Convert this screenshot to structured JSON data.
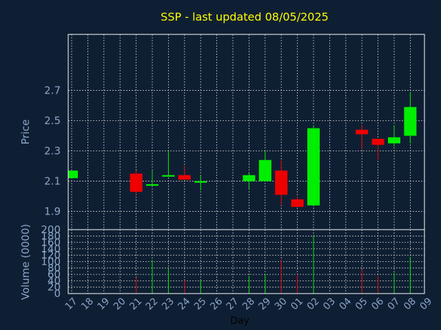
{
  "colors": {
    "background": "#0f1f33",
    "frame": "#ffffff",
    "grid": "#c8c8c8",
    "title": "#ffff00",
    "axis_text": "#8aa5c8",
    "up": "#00ee00",
    "down": "#ee0000"
  },
  "chart_data": {
    "type": "candlestick",
    "title": "SSP - last updated 08/05/2025",
    "xlabel": "Day",
    "ylabel_price": "Price",
    "ylabel_volume": "Volume (0000)",
    "x_ticks": [
      "17",
      "18",
      "19",
      "20",
      "21",
      "22",
      "23",
      "24",
      "25",
      "26",
      "27",
      "28",
      "29",
      "30",
      "01",
      "02",
      "03",
      "04",
      "05",
      "06",
      "07",
      "08",
      "09"
    ],
    "price_ticks": [
      "1.9",
      "2.1",
      "2.3",
      "2.5",
      "2.7"
    ],
    "price_ylim": [
      1.78,
      3.07
    ],
    "volume_ticks": [
      "0",
      "20",
      "40",
      "60",
      "80",
      "100",
      "120",
      "140",
      "160",
      "180",
      "200"
    ],
    "volume_ylim": [
      0,
      200
    ],
    "grid": true,
    "candles": [
      {
        "day": "17",
        "open": 2.12,
        "close": 2.17,
        "high": 2.17,
        "low": 2.12,
        "volume": 0
      },
      {
        "day": "21",
        "open": 2.15,
        "close": 2.03,
        "high": 2.17,
        "low": 2.01,
        "volume": 50
      },
      {
        "day": "22",
        "open": 2.07,
        "close": 2.08,
        "high": 2.17,
        "low": 2.07,
        "volume": 105
      },
      {
        "day": "23",
        "open": 2.13,
        "close": 2.14,
        "high": 2.3,
        "low": 2.13,
        "volume": 78
      },
      {
        "day": "24",
        "open": 2.14,
        "close": 2.11,
        "high": 2.2,
        "low": 2.11,
        "volume": 42
      },
      {
        "day": "25",
        "open": 2.09,
        "close": 2.1,
        "high": 2.14,
        "low": 2.04,
        "volume": 42
      },
      {
        "day": "28",
        "open": 2.1,
        "close": 2.14,
        "high": 2.16,
        "low": 2.05,
        "volume": 55
      },
      {
        "day": "29",
        "open": 2.1,
        "close": 2.24,
        "high": 2.3,
        "low": 2.1,
        "volume": 60
      },
      {
        "day": "30",
        "open": 2.17,
        "close": 2.01,
        "high": 2.24,
        "low": 1.94,
        "volume": 105
      },
      {
        "day": "01",
        "open": 1.98,
        "close": 1.93,
        "high": 2.0,
        "low": 1.93,
        "volume": 60
      },
      {
        "day": "02",
        "open": 1.94,
        "close": 2.45,
        "high": 2.47,
        "low": 1.94,
        "volume": 180
      },
      {
        "day": "05",
        "open": 2.44,
        "close": 2.41,
        "high": 2.47,
        "low": 2.31,
        "volume": 75
      },
      {
        "day": "06",
        "open": 2.38,
        "close": 2.34,
        "high": 2.38,
        "low": 2.24,
        "volume": 55
      },
      {
        "day": "07",
        "open": 2.35,
        "close": 2.39,
        "high": 2.47,
        "low": 2.33,
        "volume": 65
      },
      {
        "day": "08",
        "open": 2.4,
        "close": 2.59,
        "high": 2.69,
        "low": 2.35,
        "volume": 115
      }
    ]
  }
}
